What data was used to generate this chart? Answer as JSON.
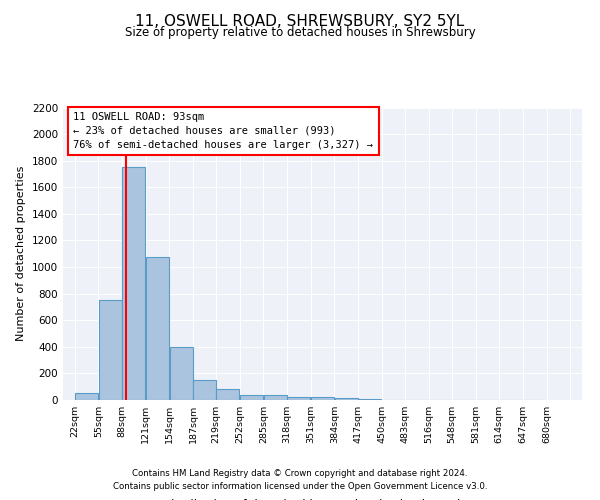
{
  "title": "11, OSWELL ROAD, SHREWSBURY, SY2 5YL",
  "subtitle": "Size of property relative to detached houses in Shrewsbury",
  "xlabel": "Distribution of detached houses by size in Shrewsbury",
  "ylabel": "Number of detached properties",
  "bar_values": [
    50,
    750,
    1750,
    1075,
    400,
    150,
    80,
    40,
    35,
    25,
    20,
    15,
    5,
    2,
    1,
    0,
    0,
    0,
    0,
    0
  ],
  "bin_labels": [
    "22sqm",
    "55sqm",
    "88sqm",
    "121sqm",
    "154sqm",
    "187sqm",
    "219sqm",
    "252sqm",
    "285sqm",
    "318sqm",
    "351sqm",
    "384sqm",
    "417sqm",
    "450sqm",
    "483sqm",
    "516sqm",
    "548sqm",
    "581sqm",
    "614sqm",
    "647sqm",
    "680sqm"
  ],
  "bin_edges": [
    22,
    55,
    88,
    121,
    154,
    187,
    219,
    252,
    285,
    318,
    351,
    384,
    417,
    450,
    483,
    516,
    548,
    581,
    614,
    647,
    680
  ],
  "bar_color": "#aac4e0",
  "bar_edge_color": "#5a9bc8",
  "red_line_x": 93,
  "annotation_text": "11 OSWELL ROAD: 93sqm\n← 23% of detached houses are smaller (993)\n76% of semi-detached houses are larger (3,327) →",
  "ylim": [
    0,
    2200
  ],
  "yticks": [
    0,
    200,
    400,
    600,
    800,
    1000,
    1200,
    1400,
    1600,
    1800,
    2000,
    2200
  ],
  "footer_line1": "Contains HM Land Registry data © Crown copyright and database right 2024.",
  "footer_line2": "Contains public sector information licensed under the Open Government Licence v3.0.",
  "plot_bg_color": "#eef2f8"
}
